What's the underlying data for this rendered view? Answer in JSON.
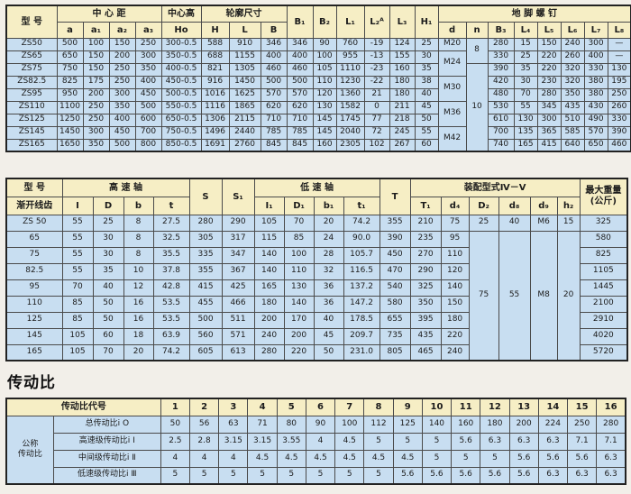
{
  "colors": {
    "header_bg": "#f6eec5",
    "cell_bg": "#c8def1",
    "border": "#4a4a4a",
    "page_bg": "#f2efe9"
  },
  "section_title": "传动比",
  "t1": {
    "h": {
      "model": "型  号",
      "center_distance": "中 心 距",
      "center_height": "中心高",
      "contour": "轮廓尺寸",
      "bolts": "地 脚 螺 钉",
      "sub": [
        "a",
        "a₁",
        "a₂",
        "a₃"
      ],
      "ho": "Ho",
      "contour_sub": [
        "H",
        "L",
        "B"
      ],
      "singles": [
        "B₁",
        "B₂",
        "L₁",
        "L₂ᴬ",
        "L₃",
        "H₁"
      ],
      "bolt_sub": [
        "d",
        "n",
        "B₃",
        "L₄",
        "L₅",
        "L₆",
        "L₇",
        "L₈"
      ]
    },
    "rows": [
      [
        "ZS50",
        "500",
        "100",
        "150",
        "250",
        "300-0.5",
        "588",
        "910",
        "346",
        "346",
        "90",
        "760",
        "-19",
        "124",
        "25",
        "M20",
        {
          "v": "8",
          "rs": 2
        },
        "280",
        "15",
        "150",
        "240",
        "300",
        "—"
      ],
      [
        "ZS65",
        "650",
        "150",
        "200",
        "300",
        "350-0.5",
        "688",
        "1155",
        "400",
        "400",
        "100",
        "955",
        "-13",
        "155",
        "30",
        {
          "v": "M24",
          "rs": 2
        },
        null,
        "330",
        "25",
        "220",
        "260",
        "400",
        "—"
      ],
      [
        "ZS75",
        "750",
        "150",
        "250",
        "350",
        "400-0.5",
        "821",
        "1305",
        "460",
        "460",
        "105",
        "1110",
        "-23",
        "160",
        "35",
        null,
        {
          "v": "10",
          "rs": 7
        },
        "390",
        "35",
        "220",
        "320",
        "330",
        "130"
      ],
      [
        "ZS82.5",
        "825",
        "175",
        "250",
        "400",
        "450-0.5",
        "916",
        "1450",
        "500",
        "500",
        "110",
        "1230",
        "-22",
        "180",
        "38",
        {
          "v": "M30",
          "rs": 2
        },
        null,
        "420",
        "30",
        "230",
        "320",
        "380",
        "195"
      ],
      [
        "ZS95",
        "950",
        "200",
        "300",
        "450",
        "500-0.5",
        "1016",
        "1625",
        "570",
        "570",
        "120",
        "1360",
        "21",
        "180",
        "40",
        null,
        null,
        "480",
        "70",
        "280",
        "350",
        "380",
        "250"
      ],
      [
        "ZS110",
        "1100",
        "250",
        "350",
        "500",
        "550-0.5",
        "1116",
        "1865",
        "620",
        "620",
        "130",
        "1582",
        "0",
        "211",
        "45",
        {
          "v": "M36",
          "rs": 2
        },
        null,
        "530",
        "55",
        "345",
        "435",
        "430",
        "260"
      ],
      [
        "ZS125",
        "1250",
        "250",
        "400",
        "600",
        "650-0.5",
        "1306",
        "2115",
        "710",
        "710",
        "145",
        "1745",
        "77",
        "218",
        "50",
        null,
        null,
        "610",
        "130",
        "300",
        "510",
        "490",
        "330"
      ],
      [
        "ZS145",
        "1450",
        "300",
        "450",
        "700",
        "750-0.5",
        "1496",
        "2440",
        "785",
        "785",
        "145",
        "2040",
        "72",
        "245",
        "55",
        {
          "v": "M42",
          "rs": 2
        },
        null,
        "700",
        "135",
        "365",
        "585",
        "570",
        "390"
      ],
      [
        "ZS165",
        "1650",
        "350",
        "500",
        "800",
        "850-0.5",
        "1691",
        "2760",
        "845",
        "845",
        "160",
        "2305",
        "102",
        "267",
        "60",
        null,
        null,
        "740",
        "165",
        "415",
        "640",
        "650",
        "460"
      ]
    ]
  },
  "t2": {
    "h": {
      "model": "型  号",
      "involute": "渐开线齿",
      "high_speed_shaft": "高 速 轴",
      "hs_sub": [
        "I",
        "D",
        "b",
        "t"
      ],
      "s": "S",
      "s1": "S₁",
      "low_speed_shaft": "低 速 轴",
      "ls_sub": [
        "I₁",
        "D₁",
        "b₁",
        "t₁"
      ],
      "t": "T",
      "assembly": "装配型式Ⅳ－Ⅴ",
      "asm_sub": [
        "T₁",
        "d₄",
        "D₂",
        "d₈",
        "d₉",
        "h₂"
      ],
      "max_weight": "最大重量\n(公斤)"
    },
    "rows": [
      [
        "ZS 50",
        "55",
        "25",
        "8",
        "27.5",
        "280",
        "290",
        "105",
        "70",
        "20",
        "74.2",
        "355",
        "210",
        "75",
        "25",
        "40",
        "M6",
        "15",
        "325"
      ],
      [
        "65",
        "55",
        "30",
        "8",
        "32.5",
        "305",
        "317",
        "115",
        "85",
        "24",
        "90.0",
        "390",
        "235",
        "95",
        {
          "v": "75",
          "rs": 8
        },
        {
          "v": "55",
          "rs": 8
        },
        {
          "v": "M8",
          "rs": 8
        },
        {
          "v": "20",
          "rs": 8
        },
        "580"
      ],
      [
        "75",
        "55",
        "30",
        "8",
        "35.5",
        "335",
        "347",
        "140",
        "100",
        "28",
        "105.7",
        "450",
        "270",
        "110",
        null,
        null,
        null,
        null,
        "825"
      ],
      [
        "82.5",
        "55",
        "35",
        "10",
        "37.8",
        "355",
        "367",
        "140",
        "110",
        "32",
        "116.5",
        "470",
        "290",
        "120",
        null,
        null,
        null,
        null,
        "1105"
      ],
      [
        "95",
        "70",
        "40",
        "12",
        "42.8",
        "415",
        "425",
        "165",
        "130",
        "36",
        "137.2",
        "540",
        "325",
        "140",
        null,
        null,
        null,
        null,
        "1445"
      ],
      [
        "110",
        "85",
        "50",
        "16",
        "53.5",
        "455",
        "466",
        "180",
        "140",
        "36",
        "147.2",
        "580",
        "350",
        "150",
        null,
        null,
        null,
        null,
        "2100"
      ],
      [
        "125",
        "85",
        "50",
        "16",
        "53.5",
        "500",
        "511",
        "200",
        "170",
        "40",
        "178.5",
        "655",
        "395",
        "180",
        null,
        null,
        null,
        null,
        "2910"
      ],
      [
        "145",
        "105",
        "60",
        "18",
        "63.9",
        "560",
        "571",
        "240",
        "200",
        "45",
        "209.7",
        "735",
        "435",
        "220",
        null,
        null,
        null,
        null,
        "4020"
      ],
      [
        "165",
        "105",
        "70",
        "20",
        "74.2",
        "605",
        "613",
        "280",
        "220",
        "50",
        "231.0",
        "805",
        "465",
        "240",
        null,
        null,
        null,
        null,
        "5720"
      ]
    ]
  },
  "t3": {
    "code_header": "传动比代号",
    "cols": [
      "1",
      "2",
      "3",
      "4",
      "5",
      "6",
      "7",
      "8",
      "9",
      "10",
      "11",
      "12",
      "13",
      "14",
      "15",
      "16"
    ],
    "group_label": "公称\n传动比",
    "rows": [
      {
        "label": "总传动比i O",
        "values": [
          "50",
          "56",
          "63",
          "71",
          "80",
          "90",
          "100",
          "112",
          "125",
          "140",
          "160",
          "180",
          "200",
          "224",
          "250",
          "280"
        ]
      },
      {
        "label": "高速级传动比i Ⅰ",
        "values": [
          "2.5",
          "2.8",
          "3.15",
          "3.15",
          "3.55",
          "4",
          "4.5",
          "5",
          "5",
          "5",
          "5.6",
          "6.3",
          "6.3",
          "6.3",
          "7.1",
          "7.1"
        ]
      },
      {
        "label": "中间级传动比i Ⅱ",
        "values": [
          "4",
          "4",
          "4",
          "4.5",
          "4.5",
          "4.5",
          "4.5",
          "4.5",
          "4.5",
          "5",
          "5",
          "5",
          "5.6",
          "5.6",
          "5.6",
          "6.3"
        ]
      },
      {
        "label": "低速级传动比i Ⅲ",
        "values": [
          "5",
          "5",
          "5",
          "5",
          "5",
          "5",
          "5",
          "5",
          "5.6",
          "5.6",
          "5.6",
          "5.6",
          "5.6",
          "6.3",
          "6.3",
          "6.3"
        ]
      }
    ]
  }
}
